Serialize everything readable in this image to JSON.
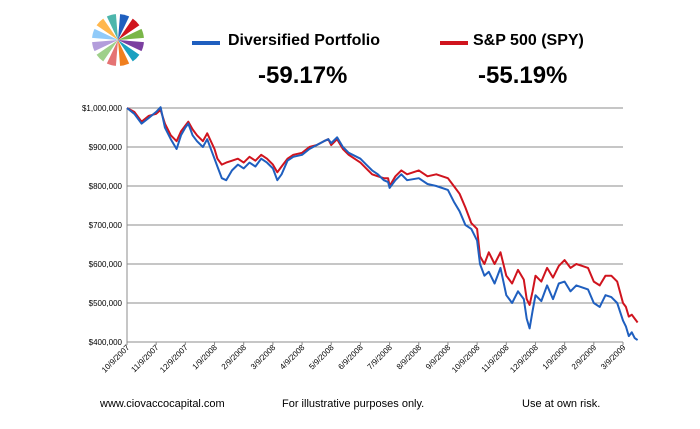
{
  "header": {
    "legend": [
      {
        "label": "Diversified Portfolio",
        "color": "#1f5fbf"
      },
      {
        "label": "S&P 500 (SPY)",
        "color": "#d0141e"
      }
    ],
    "returns": [
      "-59.17%",
      "-55.19%"
    ]
  },
  "logo": {
    "icon": "pie-wheel-logo",
    "colors": [
      "#1f5fbf",
      "#d0141e",
      "#7ab648",
      "#7b3fa0",
      "#1aa0c0",
      "#f07f1f",
      "#e57373",
      "#9fd08a",
      "#b39ddb",
      "#90caf9",
      "#ffb74d",
      "#4db6ac"
    ]
  },
  "chart_data": {
    "type": "line",
    "x_tick_labels": [
      "10/9/2007",
      "11/9/2007",
      "12/9/2007",
      "1/9/2008",
      "2/9/2008",
      "3/9/2008",
      "4/9/2008",
      "5/9/2008",
      "6/9/2008",
      "7/9/2008",
      "8/9/2008",
      "9/9/2008",
      "10/9/2008",
      "11/9/2008",
      "12/9/2008",
      "1/9/2009",
      "2/9/2009",
      "3/9/2009"
    ],
    "y_tick_labels": [
      "$400,000",
      "$500,000",
      "$600,000",
      "$700,000",
      "$800,000",
      "$900,000",
      "$1,000,000"
    ],
    "ylim": [
      400000,
      1000000
    ],
    "grid": true,
    "series": [
      {
        "name": "Diversified Portfolio",
        "color": "#1f5fbf",
        "points": [
          [
            0,
            1000000
          ],
          [
            0.25,
            985000
          ],
          [
            0.5,
            960000
          ],
          [
            0.75,
            975000
          ],
          [
            1,
            990000
          ],
          [
            1.15,
            1002000
          ],
          [
            1.3,
            950000
          ],
          [
            1.5,
            920000
          ],
          [
            1.7,
            895000
          ],
          [
            1.85,
            930000
          ],
          [
            2,
            950000
          ],
          [
            2.1,
            960000
          ],
          [
            2.25,
            930000
          ],
          [
            2.4,
            915000
          ],
          [
            2.6,
            900000
          ],
          [
            2.75,
            920000
          ],
          [
            3,
            870000
          ],
          [
            3.1,
            850000
          ],
          [
            3.25,
            820000
          ],
          [
            3.4,
            815000
          ],
          [
            3.6,
            840000
          ],
          [
            3.8,
            855000
          ],
          [
            4,
            845000
          ],
          [
            4.2,
            860000
          ],
          [
            4.4,
            850000
          ],
          [
            4.6,
            870000
          ],
          [
            4.8,
            860000
          ],
          [
            5,
            845000
          ],
          [
            5.15,
            815000
          ],
          [
            5.3,
            830000
          ],
          [
            5.5,
            865000
          ],
          [
            5.7,
            875000
          ],
          [
            6,
            880000
          ],
          [
            6.25,
            895000
          ],
          [
            6.5,
            905000
          ],
          [
            6.75,
            915000
          ],
          [
            6.9,
            920000
          ],
          [
            7,
            910000
          ],
          [
            7.2,
            925000
          ],
          [
            7.4,
            900000
          ],
          [
            7.6,
            885000
          ],
          [
            8,
            870000
          ],
          [
            8.2,
            855000
          ],
          [
            8.4,
            840000
          ],
          [
            8.6,
            830000
          ],
          [
            8.8,
            815000
          ],
          [
            8.95,
            810000
          ],
          [
            9,
            795000
          ],
          [
            9.2,
            815000
          ],
          [
            9.4,
            830000
          ],
          [
            9.6,
            815000
          ],
          [
            10,
            820000
          ],
          [
            10.3,
            805000
          ],
          [
            10.6,
            800000
          ],
          [
            11,
            790000
          ],
          [
            11.2,
            760000
          ],
          [
            11.4,
            735000
          ],
          [
            11.6,
            700000
          ],
          [
            11.8,
            690000
          ],
          [
            12,
            660000
          ],
          [
            12.1,
            600000
          ],
          [
            12.25,
            570000
          ],
          [
            12.4,
            580000
          ],
          [
            12.6,
            550000
          ],
          [
            12.8,
            590000
          ],
          [
            13,
            520000
          ],
          [
            13.2,
            500000
          ],
          [
            13.4,
            530000
          ],
          [
            13.6,
            510000
          ],
          [
            13.7,
            460000
          ],
          [
            13.8,
            435000
          ],
          [
            13.9,
            480000
          ],
          [
            14,
            520000
          ],
          [
            14.2,
            505000
          ],
          [
            14.4,
            545000
          ],
          [
            14.6,
            510000
          ],
          [
            14.8,
            550000
          ],
          [
            15,
            555000
          ],
          [
            15.2,
            530000
          ],
          [
            15.4,
            545000
          ],
          [
            15.6,
            540000
          ],
          [
            15.8,
            535000
          ],
          [
            16,
            500000
          ],
          [
            16.2,
            490000
          ],
          [
            16.4,
            520000
          ],
          [
            16.6,
            515000
          ],
          [
            16.8,
            500000
          ],
          [
            17,
            455000
          ],
          [
            17.1,
            440000
          ],
          [
            17.2,
            415000
          ],
          [
            17.3,
            425000
          ],
          [
            17.4,
            410000
          ],
          [
            17.5,
            405000
          ]
        ]
      },
      {
        "name": "S&P 500 (SPY)",
        "color": "#d0141e",
        "points": [
          [
            0,
            1000000
          ],
          [
            0.25,
            990000
          ],
          [
            0.5,
            965000
          ],
          [
            0.75,
            980000
          ],
          [
            1,
            985000
          ],
          [
            1.15,
            995000
          ],
          [
            1.3,
            960000
          ],
          [
            1.5,
            930000
          ],
          [
            1.7,
            915000
          ],
          [
            1.85,
            940000
          ],
          [
            2,
            955000
          ],
          [
            2.1,
            965000
          ],
          [
            2.25,
            945000
          ],
          [
            2.4,
            930000
          ],
          [
            2.6,
            915000
          ],
          [
            2.75,
            935000
          ],
          [
            3,
            895000
          ],
          [
            3.1,
            870000
          ],
          [
            3.25,
            855000
          ],
          [
            3.4,
            860000
          ],
          [
            3.6,
            865000
          ],
          [
            3.8,
            870000
          ],
          [
            4,
            860000
          ],
          [
            4.2,
            875000
          ],
          [
            4.4,
            865000
          ],
          [
            4.6,
            880000
          ],
          [
            4.8,
            870000
          ],
          [
            5,
            855000
          ],
          [
            5.15,
            835000
          ],
          [
            5.3,
            850000
          ],
          [
            5.5,
            870000
          ],
          [
            5.7,
            880000
          ],
          [
            6,
            885000
          ],
          [
            6.25,
            900000
          ],
          [
            6.5,
            905000
          ],
          [
            6.75,
            915000
          ],
          [
            6.9,
            920000
          ],
          [
            7,
            905000
          ],
          [
            7.2,
            920000
          ],
          [
            7.4,
            895000
          ],
          [
            7.6,
            880000
          ],
          [
            8,
            860000
          ],
          [
            8.2,
            845000
          ],
          [
            8.4,
            830000
          ],
          [
            8.6,
            825000
          ],
          [
            8.8,
            820000
          ],
          [
            8.95,
            820000
          ],
          [
            9,
            800000
          ],
          [
            9.2,
            825000
          ],
          [
            9.4,
            840000
          ],
          [
            9.6,
            830000
          ],
          [
            10,
            840000
          ],
          [
            10.3,
            825000
          ],
          [
            10.6,
            830000
          ],
          [
            11,
            820000
          ],
          [
            11.2,
            800000
          ],
          [
            11.4,
            780000
          ],
          [
            11.6,
            745000
          ],
          [
            11.8,
            705000
          ],
          [
            12,
            690000
          ],
          [
            12.1,
            620000
          ],
          [
            12.25,
            600000
          ],
          [
            12.4,
            630000
          ],
          [
            12.6,
            600000
          ],
          [
            12.8,
            630000
          ],
          [
            13,
            570000
          ],
          [
            13.2,
            550000
          ],
          [
            13.4,
            585000
          ],
          [
            13.6,
            560000
          ],
          [
            13.7,
            510000
          ],
          [
            13.8,
            495000
          ],
          [
            13.9,
            530000
          ],
          [
            14,
            570000
          ],
          [
            14.2,
            555000
          ],
          [
            14.4,
            590000
          ],
          [
            14.6,
            565000
          ],
          [
            14.8,
            595000
          ],
          [
            15,
            610000
          ],
          [
            15.2,
            590000
          ],
          [
            15.4,
            600000
          ],
          [
            15.6,
            595000
          ],
          [
            15.8,
            590000
          ],
          [
            16,
            555000
          ],
          [
            16.2,
            545000
          ],
          [
            16.4,
            570000
          ],
          [
            16.6,
            570000
          ],
          [
            16.8,
            555000
          ],
          [
            17,
            500000
          ],
          [
            17.1,
            490000
          ],
          [
            17.2,
            465000
          ],
          [
            17.3,
            470000
          ],
          [
            17.4,
            460000
          ],
          [
            17.5,
            450000
          ]
        ]
      }
    ]
  },
  "footer": {
    "website": "www.ciovaccocapital.com",
    "disclaimer": "For illustrative purposes only.",
    "risk": "Use at own risk."
  }
}
